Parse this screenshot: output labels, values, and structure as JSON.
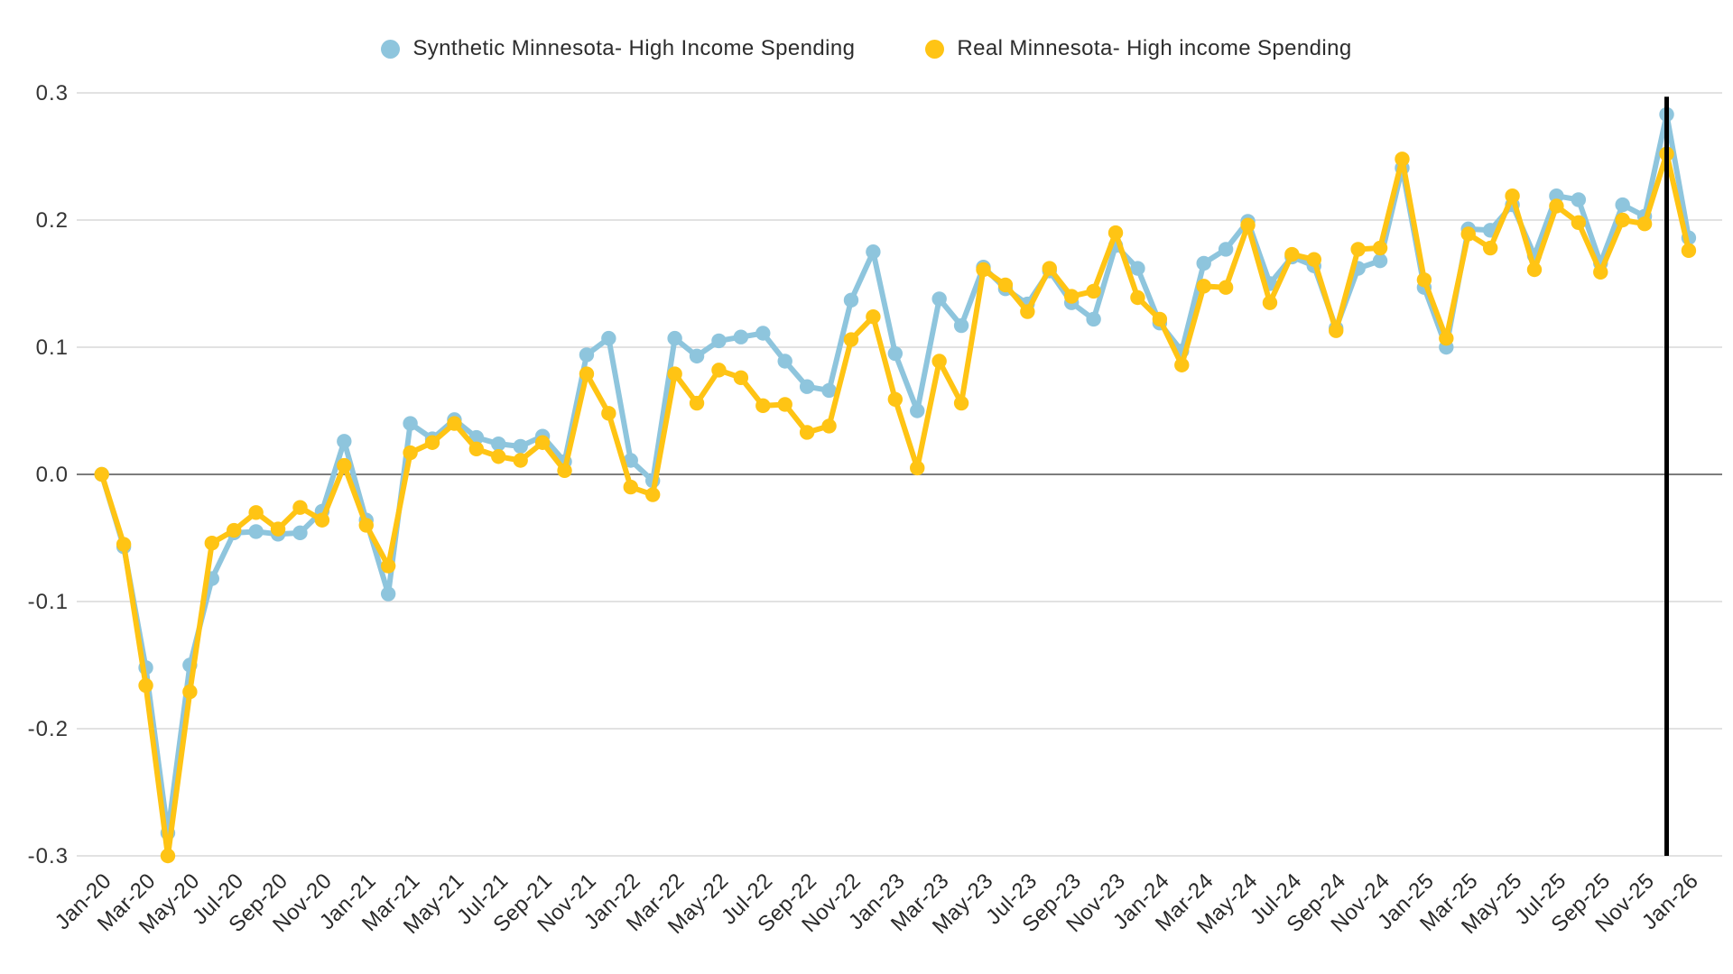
{
  "legend": {
    "items": [
      {
        "label": "Synthetic Minnesota- High Income Spending",
        "color": "#8ec5dd"
      },
      {
        "label": "Real Minnesota- High income Spending",
        "color": "#ffc414"
      }
    ]
  },
  "chart_data": {
    "type": "line",
    "title": "",
    "xlabel": "",
    "ylabel": "",
    "ylim": [
      -0.3,
      0.3
    ],
    "grid": "horizontal",
    "legend_position": "top-center",
    "y_ticks": [
      0.3,
      0.2,
      0.1,
      0.0,
      -0.1,
      -0.2,
      -0.3
    ],
    "y_tick_labels": [
      "0.3",
      "0.2",
      "0.1",
      "0.0",
      "-0.1",
      "-0.2",
      "-0.3"
    ],
    "x_tick_step": 2,
    "x": [
      "Jan-20",
      "Feb-20",
      "Mar-20",
      "Apr-20",
      "May-20",
      "Jun-20",
      "Jul-20",
      "Aug-20",
      "Sep-20",
      "Oct-20",
      "Nov-20",
      "Dec-20",
      "Jan-21",
      "Feb-21",
      "Mar-21",
      "Apr-21",
      "May-21",
      "Jun-21",
      "Jul-21",
      "Aug-21",
      "Sep-21",
      "Oct-21",
      "Nov-21",
      "Dec-21",
      "Jan-22",
      "Feb-22",
      "Mar-22",
      "Apr-22",
      "May-22",
      "Jun-22",
      "Jul-22",
      "Aug-22",
      "Sep-22",
      "Oct-22",
      "Nov-22",
      "Dec-22",
      "Jan-23",
      "Feb-23",
      "Mar-23",
      "Apr-23",
      "May-23",
      "Jun-23",
      "Jul-23",
      "Aug-23",
      "Sep-23",
      "Oct-23",
      "Nov-23",
      "Dec-23",
      "Jan-24",
      "Feb-24",
      "Mar-24",
      "Apr-24",
      "May-24",
      "Jun-24",
      "Jul-24",
      "Aug-24",
      "Sep-24",
      "Oct-24",
      "Nov-24",
      "Dec-24",
      "Jan-25",
      "Feb-25",
      "Mar-25",
      "Apr-25",
      "May-25",
      "Jun-25",
      "Jul-25",
      "Aug-25",
      "Sep-25",
      "Oct-25",
      "Nov-25",
      "Dec-25",
      "Jan-26"
    ],
    "series": [
      {
        "name": "Synthetic Minnesota- High Income Spending",
        "color": "#8ec5dd",
        "values": [
          0.0,
          -0.057,
          -0.152,
          -0.282,
          -0.15,
          -0.082,
          -0.046,
          -0.045,
          -0.047,
          -0.046,
          -0.029,
          0.026,
          -0.036,
          -0.094,
          0.04,
          0.028,
          0.043,
          0.029,
          0.024,
          0.022,
          0.03,
          0.01,
          0.094,
          0.107,
          0.011,
          -0.005,
          0.107,
          0.093,
          0.105,
          0.108,
          0.111,
          0.089,
          0.069,
          0.066,
          0.137,
          0.175,
          0.095,
          0.05,
          0.138,
          0.117,
          0.163,
          0.146,
          0.134,
          0.16,
          0.135,
          0.122,
          0.18,
          0.162,
          0.119,
          0.097,
          0.166,
          0.177,
          0.199,
          0.15,
          0.171,
          0.164,
          0.115,
          0.162,
          0.168,
          0.241,
          0.147,
          0.1,
          0.193,
          0.192,
          0.212,
          0.172,
          0.219,
          0.216,
          0.166,
          0.212,
          0.203,
          0.283,
          0.186
        ]
      },
      {
        "name": "Real Minnesota- High income Spending",
        "color": "#ffc414",
        "values": [
          0.0,
          -0.055,
          -0.166,
          -0.3,
          -0.171,
          -0.054,
          -0.044,
          -0.03,
          -0.043,
          -0.026,
          -0.036,
          0.007,
          -0.04,
          -0.072,
          0.017,
          0.025,
          0.04,
          0.02,
          0.014,
          0.011,
          0.025,
          0.003,
          0.079,
          0.048,
          -0.01,
          -0.016,
          0.079,
          0.056,
          0.082,
          0.076,
          0.054,
          0.055,
          0.033,
          0.038,
          0.106,
          0.124,
          0.059,
          0.005,
          0.089,
          0.056,
          0.161,
          0.149,
          0.128,
          0.162,
          0.14,
          0.144,
          0.19,
          0.139,
          0.122,
          0.086,
          0.148,
          0.147,
          0.196,
          0.135,
          0.173,
          0.169,
          0.113,
          0.177,
          0.178,
          0.248,
          0.153,
          0.107,
          0.189,
          0.178,
          0.219,
          0.161,
          0.211,
          0.198,
          0.159,
          0.2,
          0.197,
          0.252,
          0.176
        ]
      }
    ],
    "annotations": {
      "vertical_line": {
        "x_label": "Dec-25",
        "x_index": 71,
        "color": "#000000"
      }
    },
    "colors": {
      "gridline": "#d9d9d9",
      "zero_line": "#7d7d7d",
      "tick_label": "#2a2a2a"
    }
  }
}
